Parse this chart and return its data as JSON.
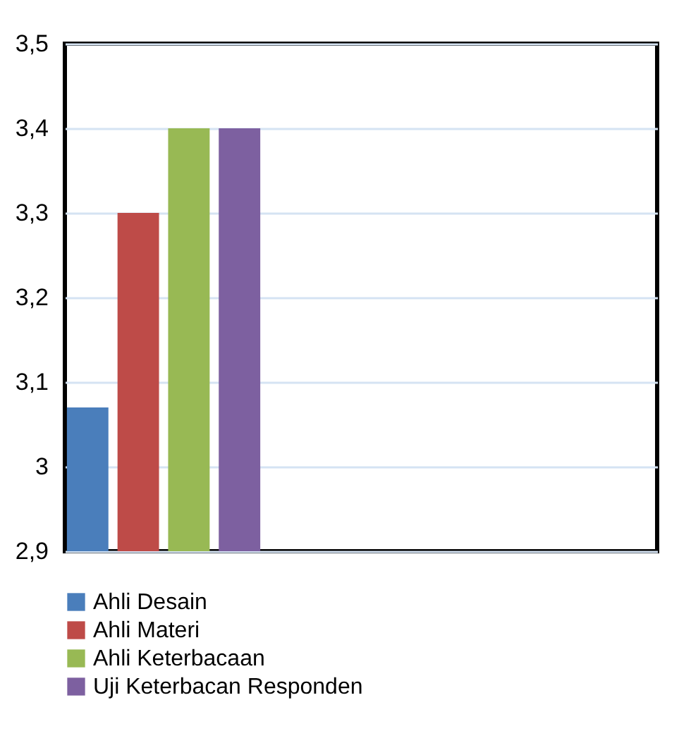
{
  "chart_data": {
    "type": "bar",
    "categories": [
      null
    ],
    "series": [
      {
        "name": "Ahli Desain",
        "color": "#4a7ebb",
        "values": [
          3.07
        ]
      },
      {
        "name": "Ahli Materi",
        "color": "#be4b48",
        "values": [
          3.3
        ]
      },
      {
        "name": "Ahli Keterbacaan",
        "color": "#98b954",
        "values": [
          3.4
        ]
      },
      {
        "name": "Uji Keterbacan Responden",
        "color": "#7d60a0",
        "values": [
          3.4
        ]
      }
    ],
    "ylim": [
      2.9,
      3.5
    ],
    "yticks": [
      {
        "value": 2.9,
        "label": "2,9"
      },
      {
        "value": 3,
        "label": "3"
      },
      {
        "value": 3.1,
        "label": "3,1"
      },
      {
        "value": 3.2,
        "label": "3,2"
      },
      {
        "value": 3.3,
        "label": "3,3"
      },
      {
        "value": 3.4,
        "label": "3,4"
      },
      {
        "value": 3.5,
        "label": "3,5"
      }
    ],
    "grid": "y",
    "legend": "bottom",
    "tick_labels": "y"
  }
}
